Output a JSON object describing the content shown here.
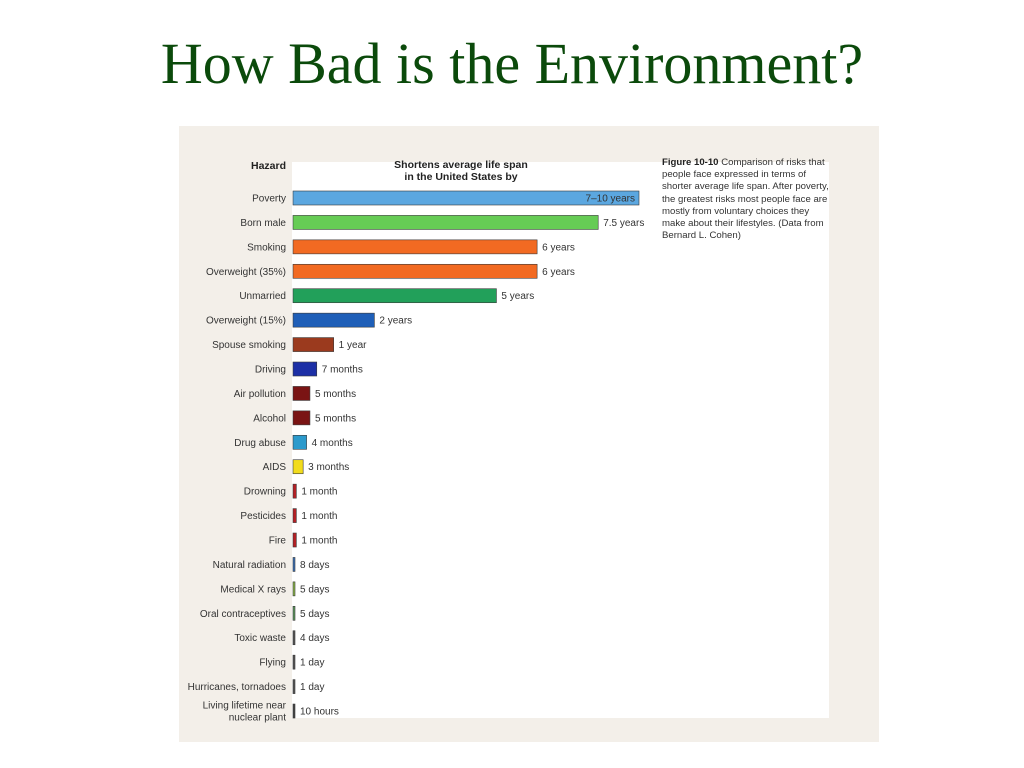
{
  "slide": {
    "title": "How Bad is the Environment?"
  },
  "figure": {
    "hazard_header": "Hazard",
    "span_header_line1": "Shortens average life span",
    "span_header_line2": "in the United States by",
    "caption_label": "Figure 10-10",
    "caption_text": "Comparison of risks that people face expressed in terms of shorter average life span. After poverty, the greatest risks most people face are mostly from voluntary choices they make about their lifestyles. (Data from Bernard L. Cohen)"
  },
  "chart_data": {
    "type": "bar",
    "orientation": "horizontal",
    "unit": "days",
    "categories": [
      "Poverty",
      "Born male",
      "Smoking",
      "Overweight (35%)",
      "Unmarried",
      "Overweight (15%)",
      "Spouse smoking",
      "Driving",
      "Air pollution",
      "Alcohol",
      "Drug abuse",
      "AIDS",
      "Drowning",
      "Pesticides",
      "Fire",
      "Natural radiation",
      "Medical X rays",
      "Oral contraceptives",
      "Toxic waste",
      "Flying",
      "Hurricanes, tornadoes",
      "Living lifetime near nuclear plant"
    ],
    "values": [
      3104,
      2738,
      2190,
      2190,
      1825,
      730,
      365,
      213,
      152,
      152,
      122,
      91,
      30,
      30,
      30,
      8,
      5,
      5,
      4,
      1,
      1,
      0.42
    ],
    "value_labels": [
      "7–10 years",
      "7.5 years",
      "6 years",
      "6 years",
      "5 years",
      "2 years",
      "1 year",
      "7 months",
      "5 months",
      "5 months",
      "4 months",
      "3 months",
      "1 month",
      "1 month",
      "1 month",
      "8 days",
      "5 days",
      "5 days",
      "4 days",
      "1 day",
      "1 day",
      "10 hours"
    ],
    "colors": [
      "#5ba7e0",
      "#66cc55",
      "#f26a22",
      "#f26a22",
      "#22a05a",
      "#1f5fb8",
      "#9b3a1e",
      "#1c2fa6",
      "#7a1414",
      "#7a1414",
      "#2b9acc",
      "#f2dc1c",
      "#b32025",
      "#b32025",
      "#b32025",
      "#3a72b8",
      "#8cb84a",
      "#5c9a5c",
      "#555555",
      "#555555",
      "#555555",
      "#444444"
    ],
    "xlabel": "",
    "ylabel": "",
    "grid": false
  }
}
